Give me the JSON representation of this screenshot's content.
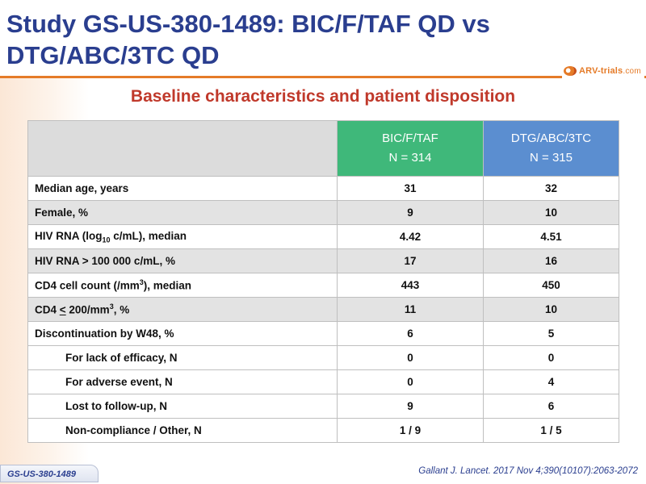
{
  "title": "Study GS-US-380-1489: BIC/F/TAF QD vs DTG/ABC/3TC QD",
  "logo": {
    "text": "ARV-trials",
    "domain": ".com",
    "icon": "arv-trials-logo-icon",
    "color": "#e57b28"
  },
  "subtitle": "Baseline characteristics and patient disposition",
  "table": {
    "columns": [
      {
        "name": "BIC/F/TAF",
        "n": "N = 314",
        "color": "#3fb87a"
      },
      {
        "name": "DTG/ABC/3TC",
        "n": "N = 315",
        "color": "#5b8ed0"
      }
    ],
    "rows": [
      {
        "label": "Median age, years",
        "a": "31",
        "b": "32"
      },
      {
        "label": "Female, %",
        "a": "9",
        "b": "10"
      },
      {
        "label": "HIV RNA (log",
        "label_sub": "10",
        "label_after": " c/mL), median",
        "a": "4.42",
        "b": "4.51"
      },
      {
        "label": "HIV RNA > 100 000 c/mL, %",
        "a": "17",
        "b": "16"
      },
      {
        "label": "CD4 cell count (/mm",
        "label_sup": "3",
        "label_after": "), median",
        "a": "443",
        "b": "450"
      },
      {
        "label": "CD4 ",
        "label_u": "<",
        "label_after": " 200/mm",
        "label_sup2": "3",
        "label_after2": ", %",
        "a": "11",
        "b": "10"
      },
      {
        "label": "Discontinuation by W48, %",
        "a": "6",
        "b": "5"
      },
      {
        "label": "For lack of efficacy, N",
        "a": "0",
        "b": "0"
      },
      {
        "label": "For adverse event, N",
        "a": "0",
        "b": "4"
      },
      {
        "label": "Lost to follow-up, N",
        "a": "9",
        "b": "6"
      },
      {
        "label": "Non-compliance / Other, N",
        "a": "1 / 9",
        "b": "1 / 5"
      }
    ]
  },
  "footer_tag": "GS-US-380-1489",
  "citation": "Gallant J. Lancet. 2017 Nov 4;390(10107):2063-2072"
}
